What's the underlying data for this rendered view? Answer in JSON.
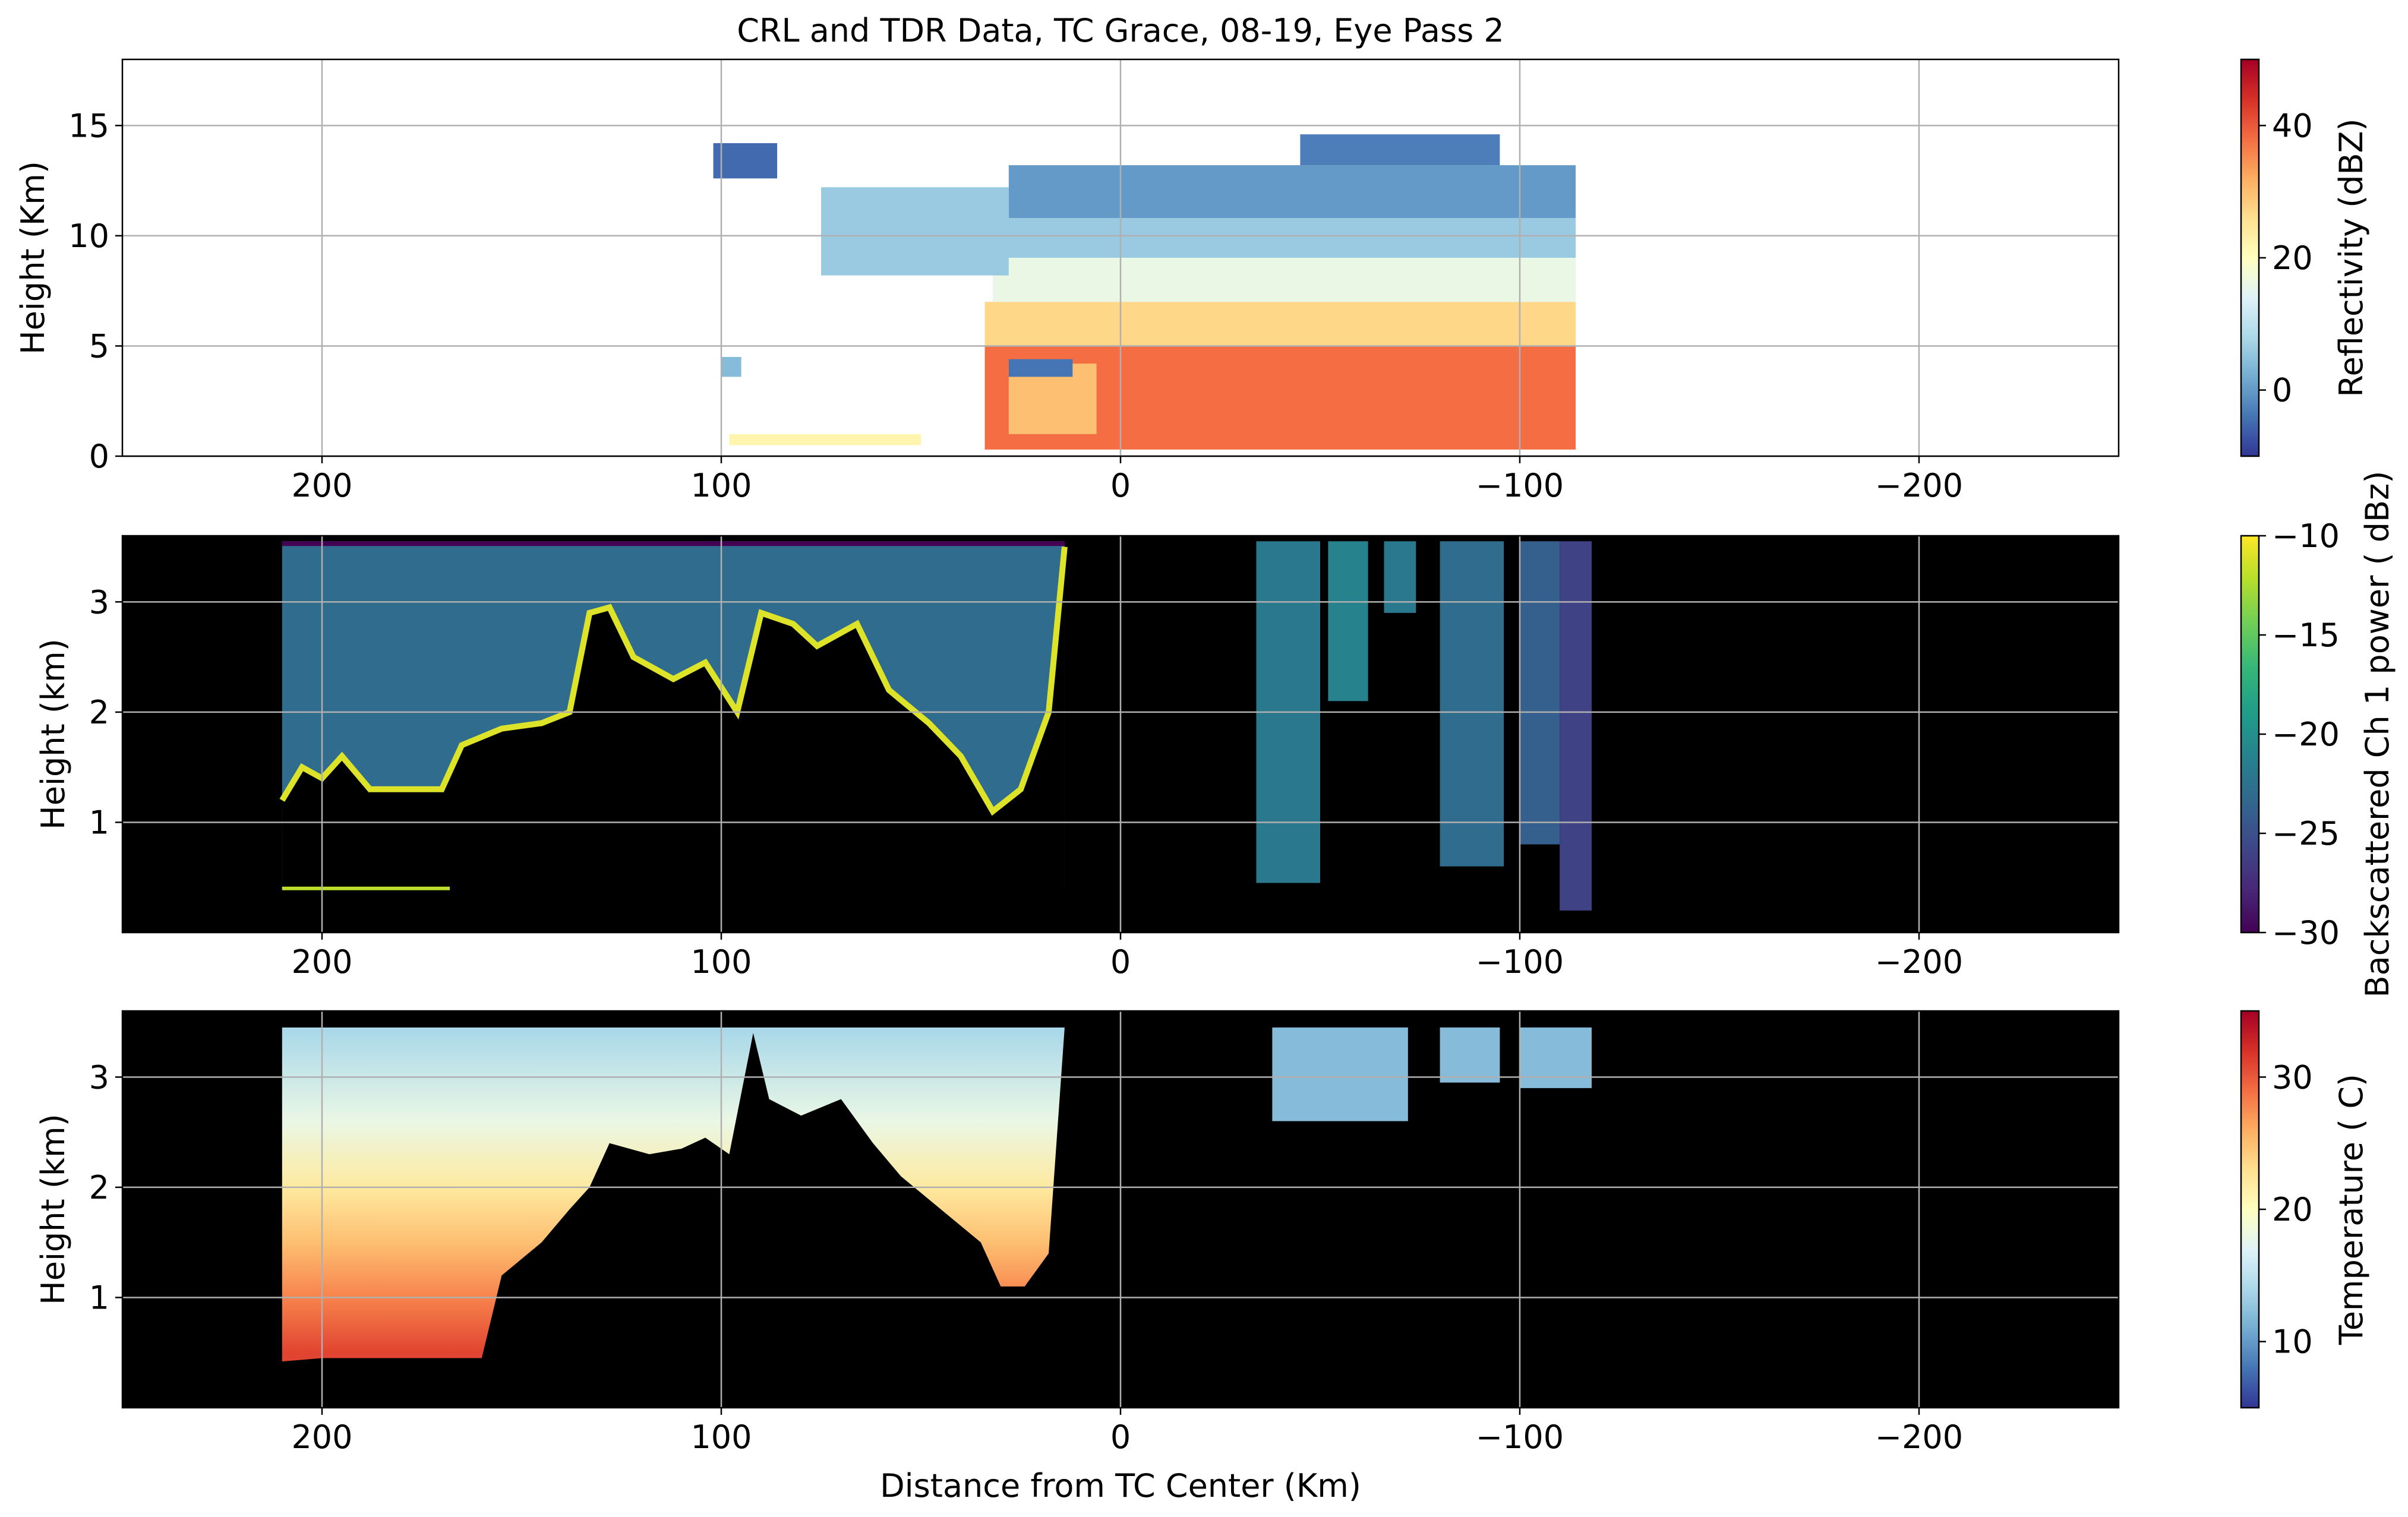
{
  "figure": {
    "title": "CRL and TDR Data, TC Grace, 08-19, Eye Pass 2",
    "shared_xlabel": "Distance from TC Center (Km)"
  },
  "colors": {
    "axes_background_dark": "#000000",
    "grid": "#b0b0b0",
    "frame": "#000000",
    "text": "#000000"
  },
  "chart_data": [
    {
      "id": "reflectivity",
      "type": "heatmap",
      "title": "CRL and TDR Data, TC Grace, 08-19, Eye Pass 2",
      "xlabel": "",
      "ylabel": "Height (Km)",
      "xlim": [
        250,
        -250
      ],
      "ylim": [
        0,
        18
      ],
      "x_axis_reversed": true,
      "xticks": [
        200,
        100,
        0,
        -100,
        -200
      ],
      "xtick_labels": [
        "200",
        "100",
        "0",
        "−100",
        "−200"
      ],
      "yticks": [
        0,
        5,
        10,
        15
      ],
      "ytick_labels": [
        "0",
        "5",
        "10",
        "15"
      ],
      "grid": true,
      "background": "white",
      "colormap": "RdYlBu_r",
      "colorbar": {
        "label": "Reflectivity (dBZ)",
        "range": [
          -10,
          50
        ],
        "ticks": [
          0,
          20,
          40
        ],
        "tick_labels": [
          "0",
          "20",
          "40"
        ]
      },
      "regions": [
        {
          "x": [
            34,
            -114
          ],
          "y": [
            0.3,
            5.0
          ],
          "value": 38
        },
        {
          "x": [
            34,
            -114
          ],
          "y": [
            5.0,
            7.0
          ],
          "value": 27
        },
        {
          "x": [
            32,
            -114
          ],
          "y": [
            7.0,
            9.0
          ],
          "value": 16
        },
        {
          "x": [
            30,
            -114
          ],
          "y": [
            9.0,
            10.8
          ],
          "value": 6
        },
        {
          "x": [
            28,
            -114
          ],
          "y": [
            10.8,
            13.2
          ],
          "value": 0
        },
        {
          "x": [
            -45,
            -95
          ],
          "y": [
            13.2,
            14.6
          ],
          "value": -3
        },
        {
          "x": [
            28,
            6
          ],
          "y": [
            1.0,
            4.2
          ],
          "value": 30
        },
        {
          "x": [
            28,
            12
          ],
          "y": [
            3.6,
            4.4
          ],
          "value": -4
        },
        {
          "x": [
            98,
            50
          ],
          "y": [
            0.5,
            1.0
          ],
          "value": 22
        },
        {
          "x": [
            75,
            28
          ],
          "y": [
            12.2,
            8.2
          ],
          "value": 6
        },
        {
          "x": [
            102,
            86
          ],
          "y": [
            14.2,
            12.6
          ],
          "value": -5
        },
        {
          "x": [
            100,
            95
          ],
          "y": [
            4.5,
            3.6
          ],
          "value": 4
        }
      ]
    },
    {
      "id": "backscatter",
      "type": "heatmap",
      "xlabel": "",
      "ylabel": "Height (km)",
      "xlim": [
        250,
        -250
      ],
      "ylim": [
        0,
        3.6
      ],
      "x_axis_reversed": true,
      "xticks": [
        200,
        100,
        0,
        -100,
        -200
      ],
      "xtick_labels": [
        "200",
        "100",
        "0",
        "−100",
        "−200"
      ],
      "yticks": [
        1,
        2,
        3
      ],
      "ytick_labels": [
        "1",
        "2",
        "3"
      ],
      "grid": true,
      "background": "black",
      "colormap": "viridis",
      "colorbar": {
        "label": "Backscattered Ch 1 power ( dBz)",
        "range": [
          -30,
          -10
        ],
        "ticks": [
          -30,
          -25,
          -20,
          -15,
          -10
        ],
        "tick_labels": [
          "−30",
          "−25",
          "−20",
          "−15",
          "−10"
        ]
      },
      "profile_top_km": 3.55,
      "surface_return_km": 0.4,
      "signal_boundary": [
        {
          "x": 210,
          "y": 1.2
        },
        {
          "x": 205,
          "y": 1.5
        },
        {
          "x": 200,
          "y": 1.4
        },
        {
          "x": 195,
          "y": 1.6
        },
        {
          "x": 188,
          "y": 1.3
        },
        {
          "x": 170,
          "y": 1.3
        },
        {
          "x": 165,
          "y": 1.7
        },
        {
          "x": 155,
          "y": 1.85
        },
        {
          "x": 145,
          "y": 1.9
        },
        {
          "x": 138,
          "y": 2.0
        },
        {
          "x": 133,
          "y": 2.9
        },
        {
          "x": 128,
          "y": 2.95
        },
        {
          "x": 122,
          "y": 2.5
        },
        {
          "x": 112,
          "y": 2.3
        },
        {
          "x": 104,
          "y": 2.45
        },
        {
          "x": 96,
          "y": 2.0
        },
        {
          "x": 90,
          "y": 2.9
        },
        {
          "x": 82,
          "y": 2.8
        },
        {
          "x": 76,
          "y": 2.6
        },
        {
          "x": 66,
          "y": 2.8
        },
        {
          "x": 58,
          "y": 2.2
        },
        {
          "x": 48,
          "y": 1.9
        },
        {
          "x": 40,
          "y": 1.6
        },
        {
          "x": 32,
          "y": 1.1
        },
        {
          "x": 25,
          "y": 1.3
        },
        {
          "x": 18,
          "y": 2.0
        },
        {
          "x": 14,
          "y": 3.5
        }
      ],
      "cloud_columns": [
        {
          "x": [
            -34,
            -50
          ],
          "bottom_km": 0.45,
          "value": -22
        },
        {
          "x": [
            -52,
            -62
          ],
          "bottom_km": 2.1,
          "value": -21
        },
        {
          "x": [
            -66,
            -74
          ],
          "bottom_km": 2.9,
          "value": -22
        },
        {
          "x": [
            -80,
            -96
          ],
          "bottom_km": 0.6,
          "value": -23
        },
        {
          "x": [
            -100,
            -110
          ],
          "bottom_km": 0.8,
          "value": -24
        },
        {
          "x": [
            -110,
            -118
          ],
          "bottom_km": 0.2,
          "value": -26
        }
      ]
    },
    {
      "id": "temperature",
      "type": "heatmap",
      "xlabel": "Distance from TC Center (Km)",
      "ylabel": "Height (km)",
      "xlim": [
        250,
        -250
      ],
      "ylim": [
        0,
        3.6
      ],
      "x_axis_reversed": true,
      "xticks": [
        200,
        100,
        0,
        -100,
        -200
      ],
      "xtick_labels": [
        "200",
        "100",
        "0",
        "−100",
        "−200"
      ],
      "yticks": [
        1,
        2,
        3
      ],
      "ytick_labels": [
        "1",
        "2",
        "3"
      ],
      "grid": true,
      "background": "black",
      "colormap": "RdYlBu_r",
      "colorbar": {
        "label": "Temperature ( C)",
        "range": [
          5,
          35
        ],
        "ticks": [
          10,
          20,
          30
        ],
        "tick_labels": [
          "10",
          "20",
          "30"
        ]
      },
      "profile_top_km": 3.45,
      "vertical_profile": [
        {
          "height_km": 3.4,
          "value": 14
        },
        {
          "height_km": 2.6,
          "value": 18
        },
        {
          "height_km": 2.0,
          "value": 22
        },
        {
          "height_km": 1.5,
          "value": 25
        },
        {
          "height_km": 1.0,
          "value": 28
        },
        {
          "height_km": 0.5,
          "value": 31
        }
      ],
      "data_floor": [
        {
          "x": 210,
          "y": 0.42
        },
        {
          "x": 200,
          "y": 0.45
        },
        {
          "x": 170,
          "y": 0.45
        },
        {
          "x": 160,
          "y": 0.45
        },
        {
          "x": 155,
          "y": 1.2
        },
        {
          "x": 145,
          "y": 1.5
        },
        {
          "x": 138,
          "y": 1.8
        },
        {
          "x": 133,
          "y": 2.0
        },
        {
          "x": 128,
          "y": 2.4
        },
        {
          "x": 118,
          "y": 2.3
        },
        {
          "x": 110,
          "y": 2.35
        },
        {
          "x": 104,
          "y": 2.45
        },
        {
          "x": 98,
          "y": 2.3
        },
        {
          "x": 92,
          "y": 3.4
        },
        {
          "x": 88,
          "y": 2.8
        },
        {
          "x": 80,
          "y": 2.65
        },
        {
          "x": 70,
          "y": 2.8
        },
        {
          "x": 62,
          "y": 2.4
        },
        {
          "x": 55,
          "y": 2.1
        },
        {
          "x": 45,
          "y": 1.8
        },
        {
          "x": 35,
          "y": 1.5
        },
        {
          "x": 30,
          "y": 1.1
        },
        {
          "x": 24,
          "y": 1.1
        },
        {
          "x": 18,
          "y": 1.4
        },
        {
          "x": 14,
          "y": 3.45
        }
      ],
      "upper_segments": [
        {
          "x": [
            -38,
            -72
          ],
          "bottom_km": 2.6,
          "value": 12
        },
        {
          "x": [
            -80,
            -95
          ],
          "bottom_km": 2.95,
          "value": 12
        },
        {
          "x": [
            -100,
            -118
          ],
          "bottom_km": 2.9,
          "value": 12
        }
      ]
    }
  ]
}
